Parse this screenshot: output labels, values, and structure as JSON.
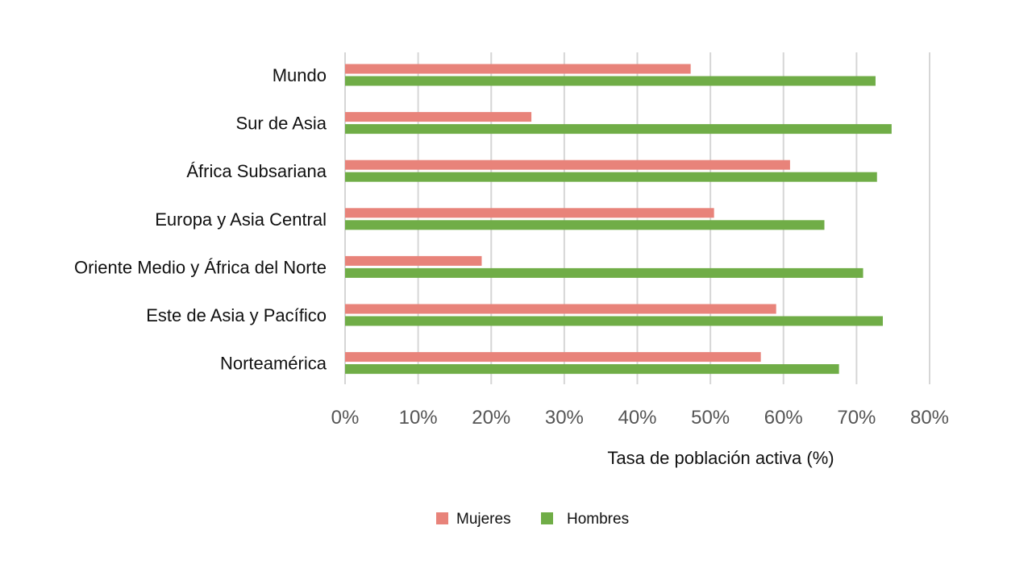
{
  "chart_data": {
    "type": "bar",
    "orientation": "horizontal",
    "categories": [
      "Mundo",
      "Sur de Asia",
      "África Subsariana",
      "Europa y Asia Central",
      "Oriente Medio y África del Norte",
      "Este de Asia y Pacífico",
      "Norteamérica"
    ],
    "series": [
      {
        "name": "Mujeres",
        "color": "#e8837a",
        "values": [
          47.3,
          25.5,
          60.9,
          50.5,
          18.7,
          59.0,
          56.9
        ]
      },
      {
        "name": "Hombres",
        "color": "#70ad47",
        "values": [
          72.6,
          74.8,
          72.8,
          65.6,
          70.9,
          73.6,
          67.6
        ]
      }
    ],
    "title": "",
    "xlabel": "Tasa de población activa (%)",
    "ylabel": "",
    "xlim": [
      0,
      80
    ],
    "xticks": [
      "0%",
      "10%",
      "20%",
      "30%",
      "40%",
      "50%",
      "60%",
      "70%",
      "80%"
    ],
    "grid": "vertical",
    "legend_position": "bottom"
  }
}
